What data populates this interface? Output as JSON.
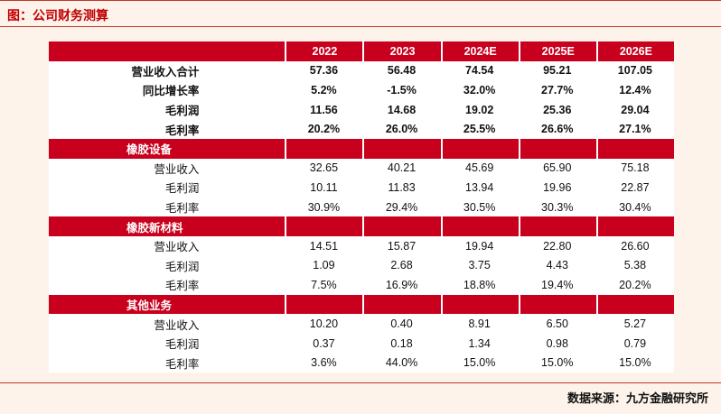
{
  "title": "图：公司财务测算",
  "source": "数据来源：九方金融研究所",
  "columns": [
    "2022",
    "2023",
    "2024E",
    "2025E",
    "2026E"
  ],
  "summary_rows": [
    {
      "label": "营业收入合计",
      "values": [
        "57.36",
        "56.48",
        "74.54",
        "95.21",
        "107.05"
      ]
    },
    {
      "label": "同比增长率",
      "values": [
        "5.2%",
        "-1.5%",
        "32.0%",
        "27.7%",
        "12.4%"
      ]
    },
    {
      "label": "毛利润",
      "values": [
        "11.56",
        "14.68",
        "19.02",
        "25.36",
        "29.04"
      ]
    },
    {
      "label": "毛利率",
      "values": [
        "20.2%",
        "26.0%",
        "25.5%",
        "26.6%",
        "27.1%"
      ]
    }
  ],
  "sections": [
    {
      "name": "橡胶设备",
      "rows": [
        {
          "label": "营业收入",
          "values": [
            "32.65",
            "40.21",
            "45.69",
            "65.90",
            "75.18"
          ]
        },
        {
          "label": "毛利润",
          "values": [
            "10.11",
            "11.83",
            "13.94",
            "19.96",
            "22.87"
          ]
        },
        {
          "label": "毛利率",
          "values": [
            "30.9%",
            "29.4%",
            "30.5%",
            "30.3%",
            "30.4%"
          ]
        }
      ]
    },
    {
      "name": "橡胶新材料",
      "rows": [
        {
          "label": "营业收入",
          "values": [
            "14.51",
            "15.87",
            "19.94",
            "22.80",
            "26.60"
          ]
        },
        {
          "label": "毛利润",
          "values": [
            "1.09",
            "2.68",
            "3.75",
            "4.43",
            "5.38"
          ]
        },
        {
          "label": "毛利率",
          "values": [
            "7.5%",
            "16.9%",
            "18.8%",
            "19.4%",
            "20.2%"
          ]
        }
      ]
    },
    {
      "name": "其他业务",
      "rows": [
        {
          "label": "营业收入",
          "values": [
            "10.20",
            "0.40",
            "8.91",
            "6.50",
            "5.27"
          ]
        },
        {
          "label": "毛利润",
          "values": [
            "0.37",
            "0.18",
            "1.34",
            "0.98",
            "0.79"
          ]
        },
        {
          "label": "毛利率",
          "values": [
            "3.6%",
            "44.0%",
            "15.0%",
            "15.0%",
            "15.0%"
          ]
        }
      ]
    }
  ],
  "colors": {
    "accent": "#c8001e",
    "background": "#fdf3ea"
  }
}
